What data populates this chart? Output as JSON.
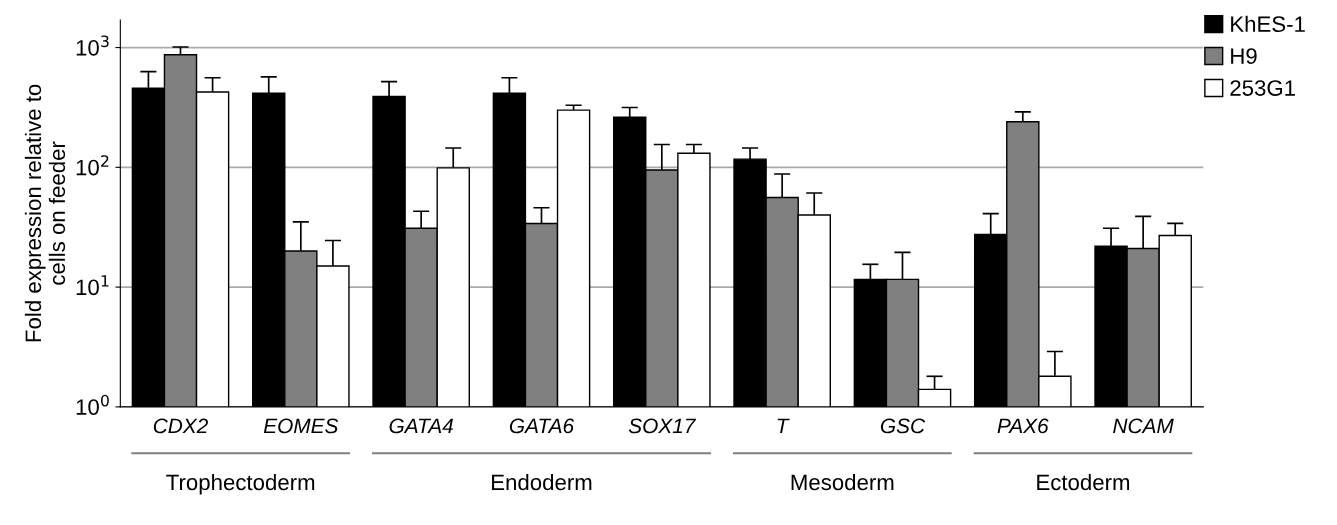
{
  "chart_data": {
    "type": "bar",
    "ylabel": "Fold expression relative to\ncells on feeder",
    "log": "y",
    "ylim": [
      1,
      1700
    ],
    "yticks": [
      {
        "value": 1,
        "label": "10$^{0}$"
      },
      {
        "value": 10,
        "label": "10$^{1}$"
      },
      {
        "value": 100,
        "label": "10$^{2}$"
      },
      {
        "value": 1000,
        "label": "10$^{3}$"
      }
    ],
    "grid": "y",
    "legend": "top right",
    "categories": [
      "CDX2",
      "EOMES",
      "GATA4",
      "GATA6",
      "SOX17",
      "T",
      "GSC",
      "PAX6",
      "NCAM"
    ],
    "series": [
      {
        "name": "KhES-1",
        "color": "#000000",
        "values": [
          457,
          415,
          390,
          415,
          262,
          117,
          11.6,
          27.5,
          22
        ],
        "errors": [
          [
            457,
            630
          ],
          [
            415,
            570
          ],
          [
            390,
            520
          ],
          [
            415,
            560
          ],
          [
            262,
            316
          ],
          [
            117,
            145
          ],
          [
            11.6,
            15.5
          ],
          [
            27.5,
            41
          ],
          [
            22,
            31
          ]
        ]
      },
      {
        "name": "H9",
        "color": "#808080",
        "values": [
          870,
          20,
          31,
          34,
          95,
          56,
          11.6,
          240,
          21
        ],
        "errors": [
          [
            870,
            1010
          ],
          [
            20,
            35
          ],
          [
            31,
            43
          ],
          [
            34,
            46
          ],
          [
            95,
            155
          ],
          [
            56,
            88
          ],
          [
            11.6,
            19.5
          ],
          [
            240,
            290
          ],
          [
            21,
            39
          ]
        ]
      },
      {
        "name": "253G1",
        "color": "#ffffff",
        "values": [
          425,
          15,
          99,
          300,
          131,
          40,
          1.4,
          1.8,
          27
        ],
        "errors": [
          [
            425,
            560
          ],
          [
            15,
            24.5
          ],
          [
            99,
            145
          ],
          [
            300,
            330
          ],
          [
            131,
            155
          ],
          [
            40,
            61
          ],
          [
            1.4,
            1.8
          ],
          [
            1.8,
            2.9
          ],
          [
            27,
            34
          ]
        ]
      }
    ],
    "annotations": [
      "Trophectoderm",
      "Endoderm",
      "Mesoderm",
      "Ectoderm"
    ]
  }
}
